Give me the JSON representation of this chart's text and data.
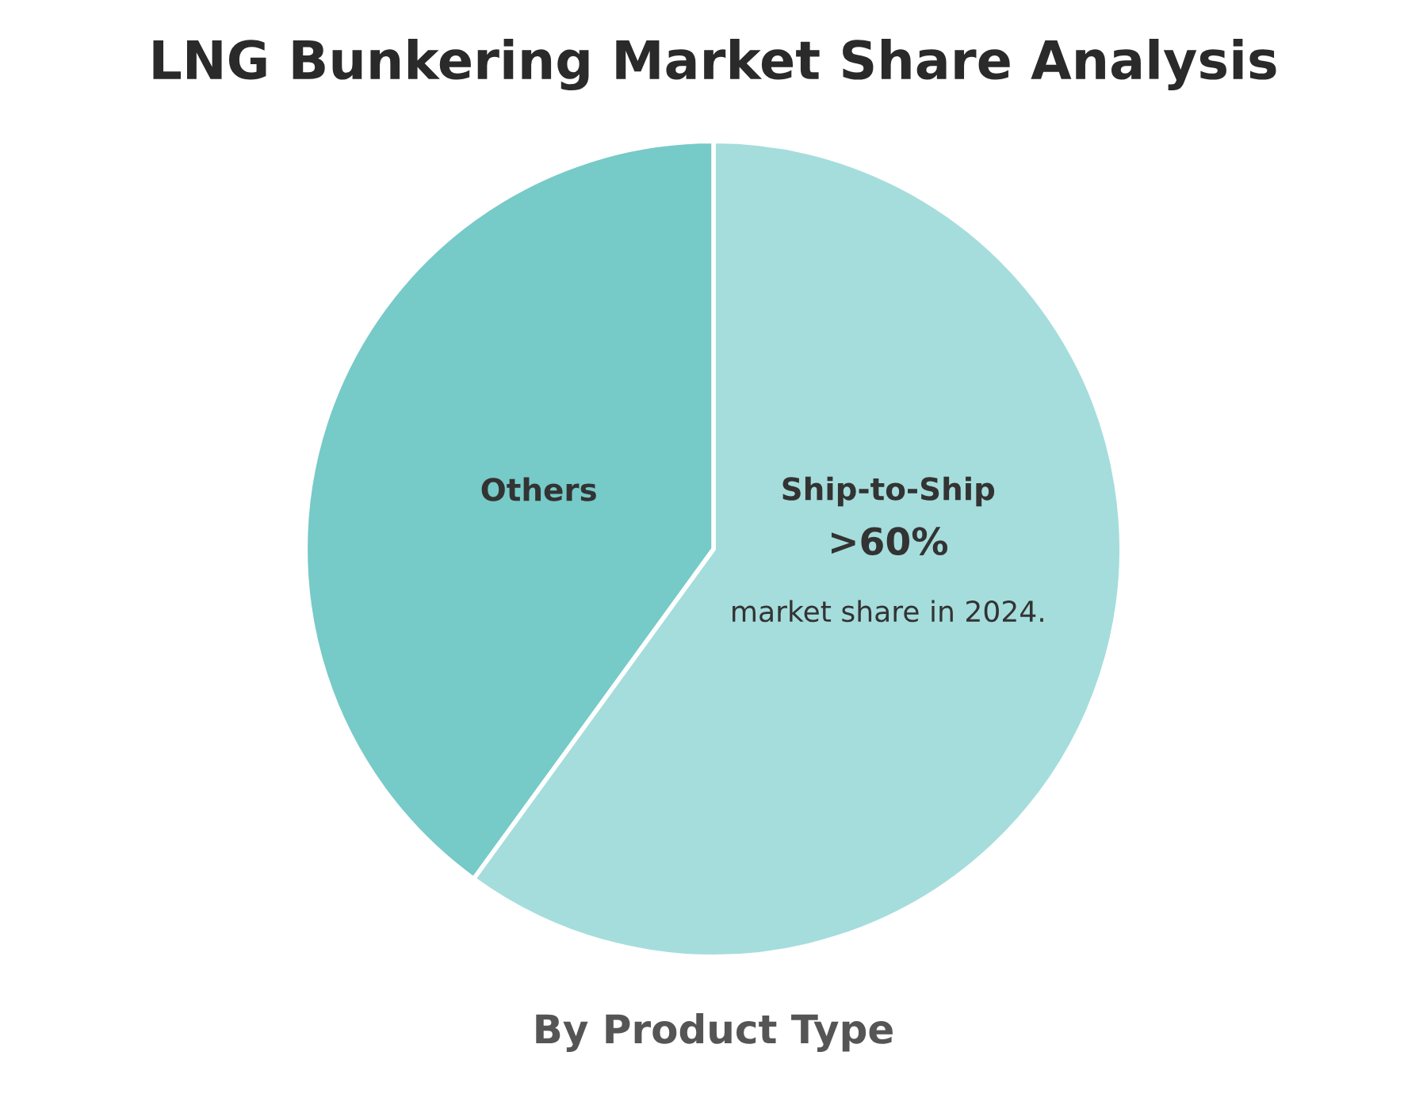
{
  "chart_data": {
    "type": "pie",
    "title": "LNG Bunkering Market Share Analysis",
    "xlabel": "By Product Type",
    "categories": [
      "Ship-to-Ship",
      "Others"
    ],
    "values": [
      60,
      40
    ],
    "colors": [
      "#a5dddc",
      "#76cac8"
    ],
    "value_labels": [
      ">60%",
      null
    ],
    "annotations": [
      "market share in 2024."
    ],
    "legend": false
  }
}
